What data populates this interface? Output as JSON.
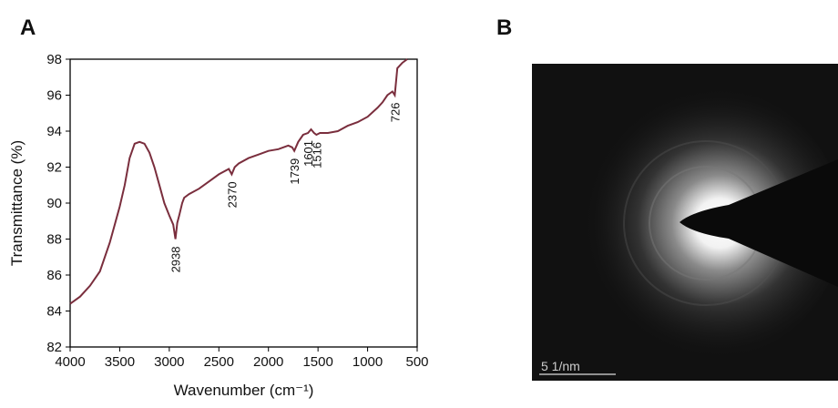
{
  "panel_labels": [
    "A",
    "B"
  ],
  "chart_data": {
    "type": "line",
    "xlabel": "Wavenumber (cm⁻¹)",
    "ylabel": "Transmittance (%)",
    "color": "#7a2e3d",
    "x": [
      4000,
      3900,
      3800,
      3700,
      3600,
      3500,
      3450,
      3400,
      3350,
      3300,
      3250,
      3200,
      3150,
      3100,
      3050,
      3000,
      2960,
      2938,
      2920,
      2900,
      2870,
      2850,
      2800,
      2700,
      2600,
      2500,
      2400,
      2370,
      2340,
      2300,
      2200,
      2100,
      2000,
      1900,
      1800,
      1760,
      1739,
      1700,
      1650,
      1601,
      1570,
      1540,
      1516,
      1480,
      1400,
      1300,
      1200,
      1100,
      1000,
      900,
      850,
      800,
      750,
      726,
      700,
      650,
      600
    ],
    "values": [
      84.4,
      84.8,
      85.4,
      86.2,
      87.8,
      89.8,
      91,
      92.5,
      93.3,
      93.4,
      93.3,
      92.8,
      92,
      91,
      90,
      89.3,
      88.8,
      88.0,
      88.9,
      89.3,
      90,
      90.3,
      90.5,
      90.8,
      91.2,
      91.6,
      91.9,
      91.6,
      92,
      92.2,
      92.5,
      92.7,
      92.9,
      93,
      93.2,
      93.1,
      92.9,
      93.4,
      93.8,
      93.9,
      94.1,
      93.9,
      93.8,
      93.9,
      93.9,
      94,
      94.3,
      94.5,
      94.8,
      95.3,
      95.6,
      96,
      96.2,
      96,
      97.5,
      97.8,
      98
    ],
    "xlim": [
      4000,
      500
    ],
    "xticks": [
      4000,
      3500,
      3000,
      2500,
      2000,
      1500,
      1000,
      500
    ],
    "ylim": [
      82,
      98
    ],
    "yticks": [
      82,
      84,
      86,
      88,
      90,
      92,
      94,
      96,
      98
    ],
    "annotations": [
      {
        "x": 2938,
        "y": 88.0,
        "text": "2938"
      },
      {
        "x": 2370,
        "y": 91.6,
        "text": "2370"
      },
      {
        "x": 1739,
        "y": 92.9,
        "text": "1739"
      },
      {
        "x": 1601,
        "y": 93.9,
        "text": "1601"
      },
      {
        "x": 1516,
        "y": 93.8,
        "text": "1516"
      },
      {
        "x": 726,
        "y": 96,
        "text": "726"
      }
    ]
  },
  "image": {
    "scale_label": "5 1/nm"
  }
}
